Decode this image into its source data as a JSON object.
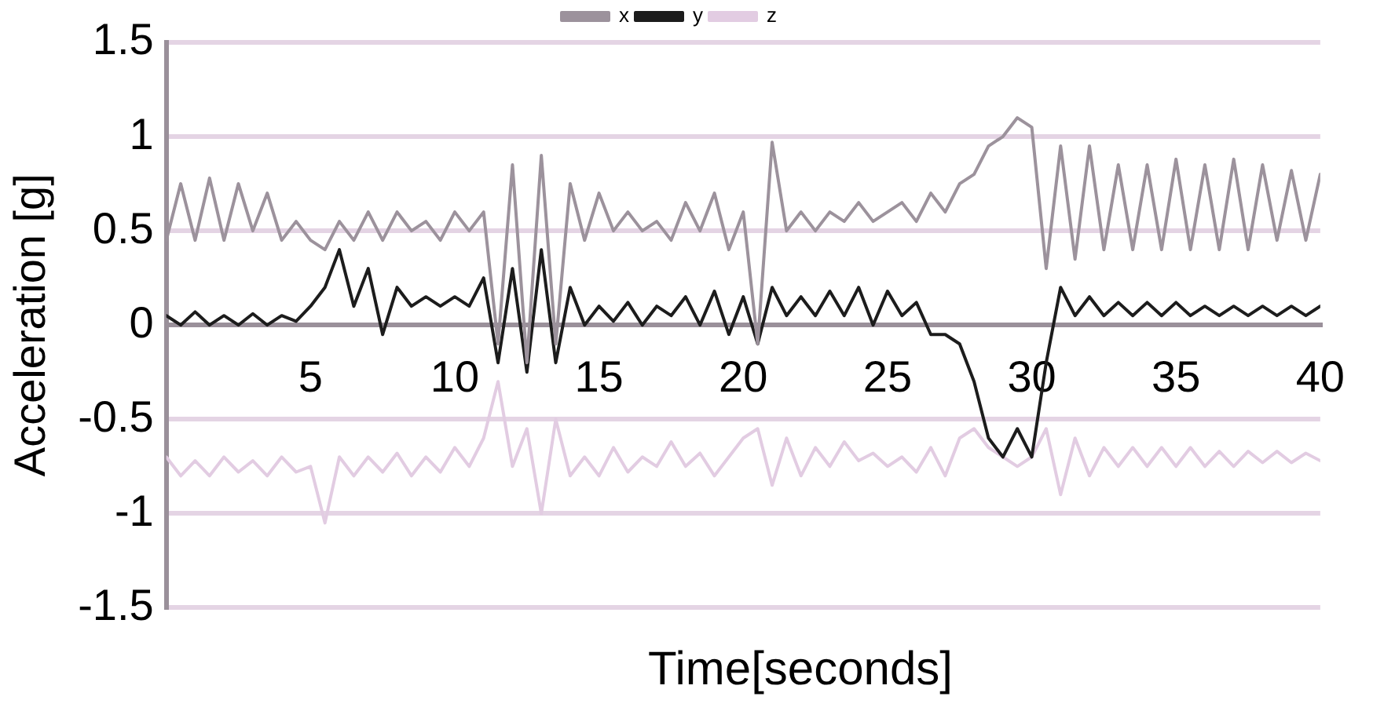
{
  "chart_data": {
    "type": "line",
    "xlabel": "Time[seconds]",
    "ylabel": "Acceleration [g]",
    "x": [
      0,
      0.5,
      1,
      1.5,
      2,
      2.5,
      3,
      3.5,
      4,
      4.5,
      5,
      5.5,
      6,
      6.5,
      7,
      7.5,
      8,
      8.5,
      9,
      9.5,
      10,
      10.5,
      11,
      11.5,
      12,
      12.5,
      13,
      13.5,
      14,
      14.5,
      15,
      15.5,
      16,
      16.5,
      17,
      17.5,
      18,
      18.5,
      19,
      19.5,
      20,
      20.5,
      21,
      21.5,
      22,
      22.5,
      23,
      23.5,
      24,
      24.5,
      25,
      25.5,
      26,
      26.5,
      27,
      27.5,
      28,
      28.5,
      29,
      29.5,
      30,
      30.5,
      31,
      31.5,
      32,
      32.5,
      33,
      33.5,
      34,
      34.5,
      35,
      35.5,
      36,
      36.5,
      37,
      37.5,
      38,
      38.5,
      39,
      39.5,
      40
    ],
    "series": [
      {
        "name": "x",
        "color": "#9c929c",
        "values": [
          0.45,
          0.75,
          0.45,
          0.78,
          0.45,
          0.75,
          0.5,
          0.7,
          0.45,
          0.55,
          0.45,
          0.4,
          0.55,
          0.45,
          0.6,
          0.45,
          0.6,
          0.5,
          0.55,
          0.45,
          0.6,
          0.5,
          0.6,
          -0.1,
          0.85,
          -0.2,
          0.9,
          -0.1,
          0.75,
          0.45,
          0.7,
          0.5,
          0.6,
          0.5,
          0.55,
          0.45,
          0.65,
          0.5,
          0.7,
          0.4,
          0.6,
          -0.1,
          0.97,
          0.5,
          0.6,
          0.5,
          0.6,
          0.55,
          0.65,
          0.55,
          0.6,
          0.65,
          0.55,
          0.7,
          0.6,
          0.75,
          0.8,
          0.95,
          1.0,
          1.1,
          1.05,
          0.3,
          0.95,
          0.35,
          0.95,
          0.4,
          0.85,
          0.4,
          0.85,
          0.4,
          0.88,
          0.4,
          0.85,
          0.4,
          0.88,
          0.4,
          0.85,
          0.45,
          0.82,
          0.45,
          0.8
        ]
      },
      {
        "name": "y",
        "color": "#1c1c1c",
        "values": [
          0.05,
          0.0,
          0.07,
          0.0,
          0.05,
          0.0,
          0.06,
          0.0,
          0.05,
          0.02,
          0.1,
          0.2,
          0.4,
          0.1,
          0.3,
          -0.05,
          0.2,
          0.1,
          0.15,
          0.1,
          0.15,
          0.1,
          0.25,
          -0.2,
          0.3,
          -0.25,
          0.4,
          -0.2,
          0.2,
          0.0,
          0.1,
          0.02,
          0.12,
          0.0,
          0.1,
          0.05,
          0.15,
          0.0,
          0.18,
          -0.05,
          0.15,
          -0.1,
          0.2,
          0.05,
          0.15,
          0.05,
          0.18,
          0.05,
          0.2,
          0.0,
          0.18,
          0.05,
          0.12,
          -0.05,
          -0.05,
          -0.1,
          -0.3,
          -0.6,
          -0.7,
          -0.55,
          -0.7,
          -0.2,
          0.2,
          0.05,
          0.15,
          0.05,
          0.12,
          0.05,
          0.12,
          0.05,
          0.12,
          0.05,
          0.1,
          0.05,
          0.1,
          0.05,
          0.1,
          0.05,
          0.1,
          0.05,
          0.1
        ]
      },
      {
        "name": "z",
        "color": "#e2cce2",
        "values": [
          -0.7,
          -0.8,
          -0.72,
          -0.8,
          -0.7,
          -0.78,
          -0.72,
          -0.8,
          -0.7,
          -0.78,
          -0.75,
          -1.05,
          -0.7,
          -0.8,
          -0.7,
          -0.78,
          -0.68,
          -0.8,
          -0.7,
          -0.78,
          -0.65,
          -0.75,
          -0.6,
          -0.3,
          -0.75,
          -0.55,
          -1.0,
          -0.5,
          -0.8,
          -0.7,
          -0.8,
          -0.65,
          -0.78,
          -0.7,
          -0.75,
          -0.62,
          -0.75,
          -0.68,
          -0.8,
          -0.7,
          -0.6,
          -0.55,
          -0.85,
          -0.6,
          -0.8,
          -0.65,
          -0.75,
          -0.62,
          -0.72,
          -0.68,
          -0.75,
          -0.7,
          -0.78,
          -0.65,
          -0.8,
          -0.6,
          -0.55,
          -0.65,
          -0.7,
          -0.75,
          -0.7,
          -0.55,
          -0.9,
          -0.6,
          -0.8,
          -0.65,
          -0.75,
          -0.65,
          -0.75,
          -0.65,
          -0.75,
          -0.65,
          -0.75,
          -0.67,
          -0.75,
          -0.67,
          -0.73,
          -0.67,
          -0.73,
          -0.68,
          -0.72
        ]
      }
    ],
    "xlim": [
      0,
      40
    ],
    "xticks": [
      5,
      10,
      15,
      20,
      25,
      30,
      35,
      40
    ],
    "ylim": [
      -1.5,
      1.5
    ],
    "yticks": [
      -1.5,
      -1,
      -0.5,
      0,
      0.5,
      1,
      1.5
    ],
    "grid": "y",
    "legend": "top",
    "marker": "none",
    "line_style": "solid"
  }
}
